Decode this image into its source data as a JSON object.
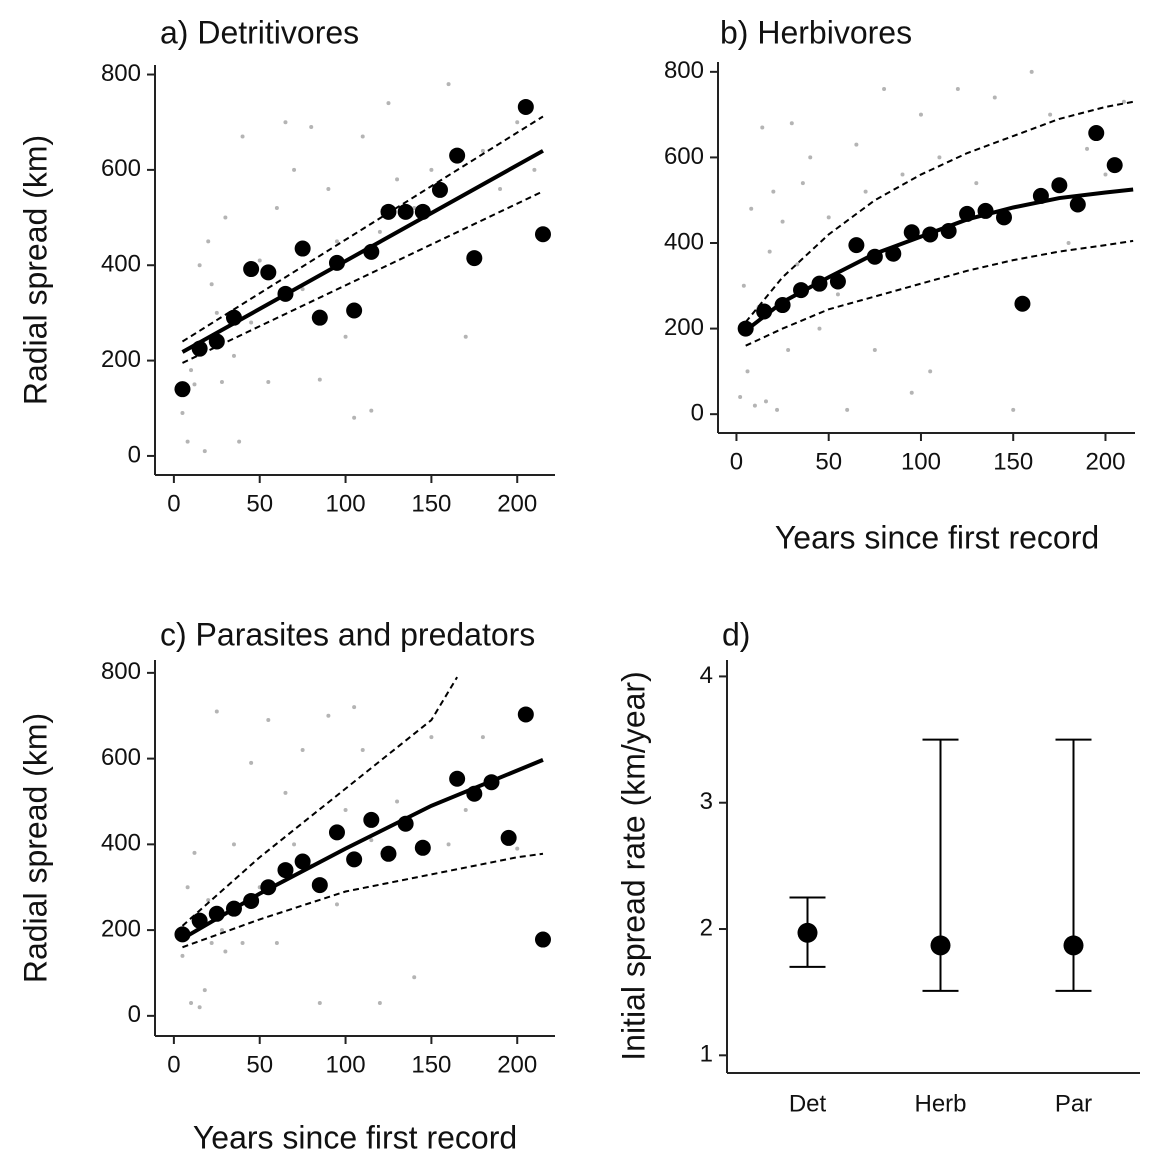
{
  "chart_data": [
    {
      "type": "scatter",
      "title": "a) Detritivores",
      "ylabel": "Radial spread (km)",
      "xlim": [
        -11,
        222
      ],
      "ylim": [
        -40,
        820
      ],
      "xticks": [
        0,
        50,
        100,
        150,
        200
      ],
      "yticks": [
        0,
        200,
        400,
        600,
        800
      ],
      "series": [
        {
          "color": "#b4b4b4",
          "marker": "small",
          "x": [
            5,
            8,
            10,
            12,
            15,
            18,
            20,
            22,
            25,
            28,
            30,
            35,
            38,
            40,
            45,
            50,
            55,
            60,
            65,
            70,
            75,
            80,
            85,
            90,
            95,
            100,
            105,
            110,
            115,
            120,
            125,
            130,
            140,
            150,
            160,
            170,
            180,
            190,
            200,
            210
          ],
          "y": [
            90,
            30,
            180,
            150,
            400,
            10,
            450,
            360,
            300,
            155,
            500,
            210,
            30,
            670,
            280,
            410,
            155,
            520,
            700,
            600,
            350,
            690,
            160,
            560,
            450,
            250,
            80,
            670,
            95,
            470,
            740,
            580,
            520,
            600,
            780,
            250,
            640,
            560,
            700,
            600
          ]
        },
        {
          "color": "#000000",
          "marker": "large",
          "x": [
            5,
            15,
            25,
            35,
            45,
            55,
            65,
            75,
            85,
            95,
            105,
            115,
            125,
            135,
            145,
            155,
            165,
            175,
            205,
            215
          ],
          "y": [
            140,
            225,
            240,
            290,
            392,
            385,
            340,
            435,
            290,
            405,
            305,
            428,
            512,
            512,
            512,
            558,
            630,
            415,
            732,
            465
          ]
        }
      ],
      "fits": [
        {
          "style": "solid",
          "x": [
            5,
            110,
            215
          ],
          "y": [
            218,
            429,
            640
          ]
        },
        {
          "style": "dashed",
          "x": [
            5,
            110,
            215
          ],
          "y": [
            240,
            476,
            712
          ]
        },
        {
          "style": "dashed",
          "x": [
            5,
            110,
            215
          ],
          "y": [
            195,
            375,
            555
          ]
        }
      ]
    },
    {
      "type": "scatter",
      "title": "b) Herbivores",
      "xlabel": "Years since first record",
      "xlim": [
        -10,
        216
      ],
      "ylim": [
        -44,
        823
      ],
      "xticks": [
        0,
        50,
        100,
        150,
        200
      ],
      "yticks": [
        0,
        200,
        400,
        600,
        800
      ],
      "series": [
        {
          "color": "#b4b4b4",
          "marker": "small",
          "x": [
            2,
            4,
            6,
            8,
            10,
            12,
            14,
            16,
            18,
            20,
            22,
            25,
            28,
            30,
            33,
            36,
            40,
            45,
            50,
            55,
            60,
            65,
            70,
            75,
            80,
            85,
            90,
            95,
            100,
            105,
            110,
            120,
            130,
            140,
            150,
            160,
            170,
            180,
            190,
            200,
            210
          ],
          "y": [
            40,
            300,
            100,
            480,
            20,
            250,
            670,
            30,
            380,
            520,
            10,
            450,
            150,
            680,
            350,
            540,
            600,
            200,
            460,
            280,
            10,
            630,
            520,
            150,
            760,
            380,
            560,
            50,
            700,
            100,
            600,
            760,
            540,
            740,
            10,
            800,
            700,
            400,
            620,
            560,
            730
          ]
        },
        {
          "color": "#000000",
          "marker": "large",
          "x": [
            5,
            15,
            25,
            35,
            45,
            55,
            65,
            75,
            85,
            95,
            105,
            115,
            125,
            135,
            145,
            155,
            165,
            175,
            185,
            195,
            205
          ],
          "y": [
            200,
            240,
            255,
            290,
            305,
            310,
            395,
            368,
            375,
            425,
            420,
            428,
            468,
            475,
            460,
            258,
            510,
            535,
            490,
            657,
            582
          ]
        }
      ],
      "fits": [
        {
          "style": "solid",
          "x": [
            5,
            25,
            50,
            75,
            100,
            125,
            150,
            175,
            200,
            215
          ],
          "y": [
            195,
            262,
            320,
            375,
            415,
            455,
            483,
            505,
            518,
            525
          ]
        },
        {
          "style": "dashed",
          "x": [
            5,
            25,
            50,
            75,
            100,
            125,
            150,
            175,
            200,
            215
          ],
          "y": [
            215,
            320,
            420,
            500,
            560,
            610,
            650,
            690,
            718,
            730
          ]
        },
        {
          "style": "dashed",
          "x": [
            5,
            25,
            50,
            75,
            100,
            125,
            150,
            175,
            200,
            215
          ],
          "y": [
            160,
            200,
            245,
            275,
            305,
            335,
            360,
            380,
            395,
            405
          ]
        }
      ]
    },
    {
      "type": "scatter",
      "title": "c) Parasites and predators",
      "ylabel": "Radial spread (km)",
      "xlabel": "Years since first record",
      "xlim": [
        -11,
        222
      ],
      "ylim": [
        -47,
        830
      ],
      "xticks": [
        0,
        50,
        100,
        150,
        200
      ],
      "yticks": [
        0,
        200,
        400,
        600,
        800
      ],
      "series": [
        {
          "color": "#b4b4b4",
          "marker": "small",
          "x": [
            5,
            8,
            10,
            12,
            15,
            18,
            20,
            22,
            25,
            28,
            30,
            35,
            40,
            45,
            50,
            55,
            60,
            65,
            70,
            75,
            80,
            85,
            90,
            95,
            100,
            105,
            110,
            115,
            120,
            130,
            140,
            150,
            160,
            170,
            180,
            200
          ],
          "y": [
            140,
            300,
            30,
            380,
            20,
            60,
            270,
            170,
            710,
            200,
            150,
            400,
            170,
            590,
            300,
            690,
            170,
            520,
            400,
            620,
            350,
            30,
            700,
            260,
            480,
            720,
            620,
            410,
            30,
            500,
            90,
            650,
            400,
            480,
            650,
            390
          ]
        },
        {
          "color": "#000000",
          "marker": "large",
          "x": [
            5,
            15,
            25,
            35,
            45,
            55,
            65,
            75,
            85,
            95,
            105,
            115,
            125,
            135,
            145,
            165,
            175,
            185,
            195,
            205,
            215
          ],
          "y": [
            190,
            222,
            238,
            250,
            268,
            300,
            340,
            360,
            305,
            428,
            365,
            457,
            378,
            448,
            392,
            553,
            518,
            545,
            415,
            703,
            178
          ]
        }
      ],
      "fits": [
        {
          "style": "solid",
          "x": [
            5,
            50,
            100,
            150,
            215
          ],
          "y": [
            180,
            285,
            390,
            490,
            597
          ]
        },
        {
          "style": "dashed",
          "x": [
            5,
            50,
            100,
            150,
            165
          ],
          "y": [
            210,
            370,
            530,
            690,
            790
          ]
        },
        {
          "style": "dashed",
          "x": [
            5,
            50,
            100,
            150,
            200,
            215
          ],
          "y": [
            160,
            225,
            290,
            330,
            370,
            378
          ]
        }
      ]
    },
    {
      "type": "errorbar",
      "title": "d)",
      "ylabel": "Initial spread rate (km/year)",
      "categories": [
        "Det",
        "Herb",
        "Par"
      ],
      "values": [
        1.97,
        1.87,
        1.87
      ],
      "lower": [
        1.7,
        1.51,
        1.51
      ],
      "upper": [
        2.25,
        3.5,
        3.5
      ],
      "ylim": [
        0.86,
        4.13
      ],
      "yticks": [
        1,
        2,
        3,
        4
      ],
      "color": "#000000"
    }
  ]
}
